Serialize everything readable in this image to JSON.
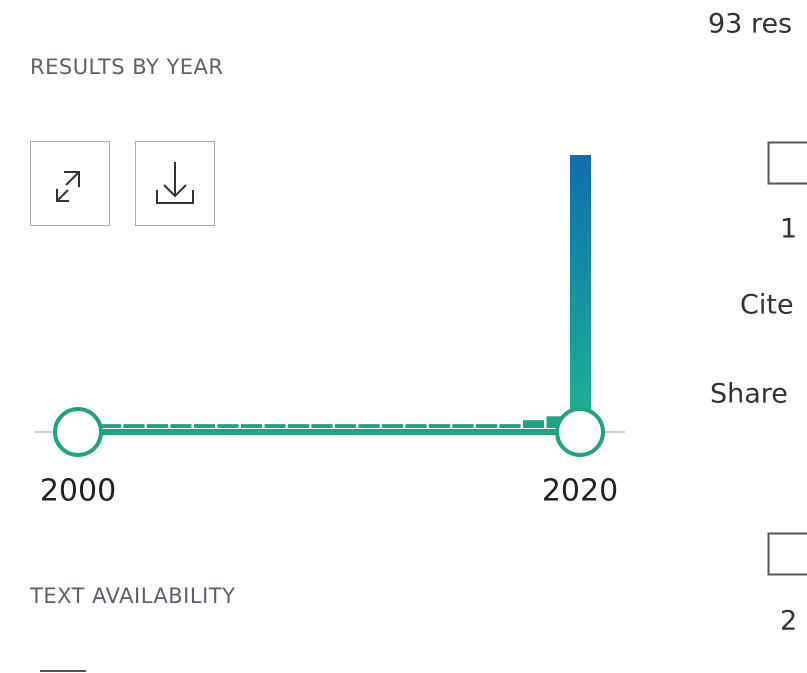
{
  "results_count": "93 res",
  "year_filter": {
    "title": "RESULTS BY YEAR",
    "values": [
      1,
      1,
      1,
      1,
      1,
      1,
      1,
      1,
      1,
      1,
      1,
      1,
      1,
      1,
      1,
      1,
      1,
      1,
      2,
      3,
      70
    ],
    "start_label": "2000",
    "end_label": "2020"
  },
  "text_filter": {
    "title": "TEXT AVAILABILITY"
  },
  "result_actions": {
    "first_number": "1",
    "cite": "Cite",
    "share": "Share",
    "second_number": "2"
  }
}
